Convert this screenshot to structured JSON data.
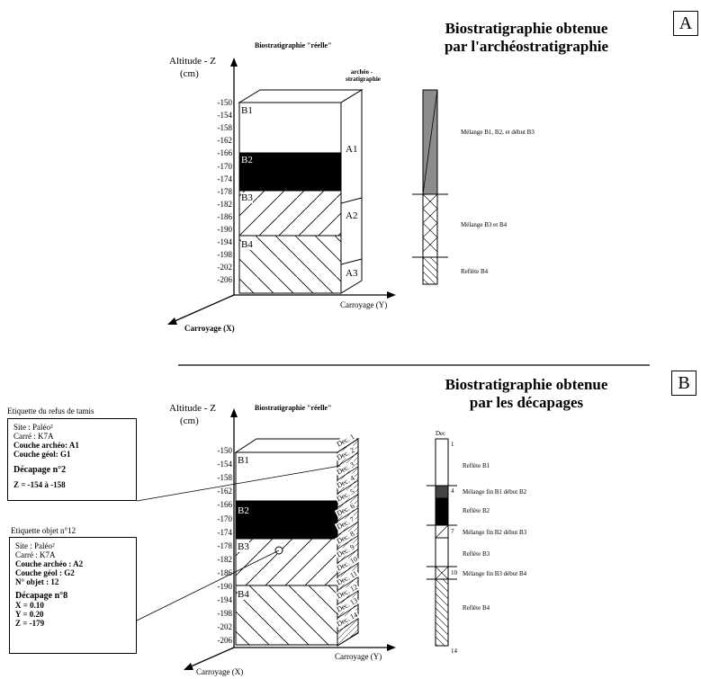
{
  "panel_a": {
    "letter": "A",
    "title_line1": "Biostratigraphie obtenue",
    "title_line2": "par l'archéostratigraphie",
    "reelle_label": "Biostratigraphie \"réelle\"",
    "altitude_label": "Altitude - Z",
    "altitude_unit": "(cm)",
    "archeo_label_line1": "archéo -",
    "archeo_label_line2": "stratigraphie",
    "ticks": [
      "-150",
      "-154",
      "-158",
      "-162",
      "-166",
      "-170",
      "-174",
      "-178",
      "-182",
      "-186",
      "-190",
      "-194",
      "-198",
      "-202",
      "-206"
    ],
    "bio_layers": [
      "B1",
      "B2",
      "B3",
      "B4"
    ],
    "archeo_layers": [
      "A1",
      "A2",
      "A3"
    ],
    "axis_x": "Carroyage (X)",
    "axis_y": "Carroyage (Y)",
    "column_notes": [
      "Mélange B1, B2, et début B3",
      "Mélange B3 et B4",
      "Reflète B4"
    ]
  },
  "panel_b": {
    "letter": "B",
    "title_line1": "Biostratigraphie obtenue",
    "title_line2": "par les décapages",
    "reelle_label": "Biostratigraphie \"réelle\"",
    "altitude_label": "Altitude - Z",
    "altitude_unit": "(cm)",
    "ticks": [
      "-150",
      "-154",
      "-158",
      "-162",
      "-166",
      "-170",
      "-174",
      "-178",
      "-182",
      "-186",
      "-190",
      "-194",
      "-198",
      "-202",
      "-206"
    ],
    "bio_layers": [
      "B1",
      "B2",
      "B3",
      "B4"
    ],
    "decapages": [
      "Dec. 1",
      "Dec. 2",
      "Dec. 3",
      "Dec. 4",
      "Dec. 5",
      "Dec. 6",
      "Dec. 7",
      "Dec. 8",
      "Dec. 9",
      "Dec. 10",
      "Dec. 11",
      "Dec. 12",
      "Dec. 13",
      "Dec. 14"
    ],
    "axis_x": "Carroyage (X)",
    "axis_y": "Carroyage (Y)",
    "column_header": "Dec",
    "column_numbers": [
      "1",
      "4",
      "7",
      "10",
      "14"
    ],
    "column_notes": [
      "Reflète B1",
      "Mélange fin B1 début B2",
      "Reflète B2",
      "Mélange fin B2 début B3",
      "Reflète B3",
      "Mélange fin B3 début B4",
      "Reflète B4"
    ],
    "sieve_label": {
      "title": "Etiquette du refus de tamis",
      "lines": [
        "Site : Paléo²",
        "Carré : K7A",
        "Couche archéo: A1",
        "Couche géol: G1"
      ],
      "decapage": "Décapage n°2",
      "z": "Z = -154 à -158"
    },
    "object_label": {
      "title": "Etiquette objet n°12",
      "lines": [
        "Site : Paléo²",
        "Carré : K7A",
        "Couche archéo : A2",
        "Couche géol : G2",
        "N° objet : 12"
      ],
      "decapage": "Décapage n°8",
      "coords": [
        "X = 0.10",
        "Y = 0.20",
        "Z = -179"
      ]
    }
  },
  "colors": {
    "black": "#000000",
    "grey": "#8c8c8c",
    "white": "#ffffff"
  }
}
